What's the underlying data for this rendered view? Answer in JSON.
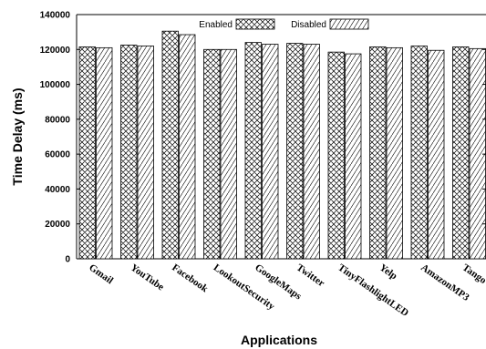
{
  "chart_data": {
    "type": "bar",
    "categories": [
      "Gmail",
      "YouTube",
      "Facebook",
      "LookoutSecurity",
      "GoogleMaps",
      "Twitter",
      "TinyFlashlightLED",
      "Yelp",
      "AmazonMP3",
      "Tango"
    ],
    "series": [
      {
        "name": "Enabled",
        "pattern": "crosshatch",
        "values": [
          121500,
          122500,
          130500,
          120000,
          124000,
          123500,
          118500,
          121500,
          122000,
          121500
        ]
      },
      {
        "name": "Disabled",
        "pattern": "diagonal-dash",
        "values": [
          121000,
          122000,
          128500,
          120000,
          123000,
          123000,
          117500,
          121000,
          119500,
          120500
        ]
      }
    ],
    "xlabel": "Applications",
    "ylabel": "Time Delay (ms)",
    "ylim": [
      0,
      140000
    ],
    "yticks": [
      "0",
      "20000",
      "40000",
      "60000",
      "80000",
      "100000",
      "120000",
      "140000"
    ],
    "legend_position": "top-center",
    "grid": false,
    "colors": {
      "stroke": "#000000",
      "fill": "#ffffff"
    }
  }
}
